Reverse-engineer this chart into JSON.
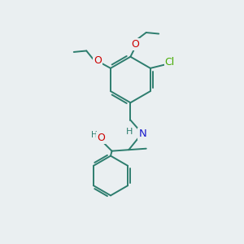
{
  "background_color": "#eaeff1",
  "bond_color": "#2d7d6e",
  "bond_width": 1.4,
  "atom_colors": {
    "O": "#cc0000",
    "N": "#1a1acc",
    "Cl": "#44aa00",
    "C": "#2d7d6e",
    "H": "#2d7d6e"
  },
  "font_size": 8.5,
  "fig_size": [
    3.0,
    3.0
  ],
  "dpi": 100
}
